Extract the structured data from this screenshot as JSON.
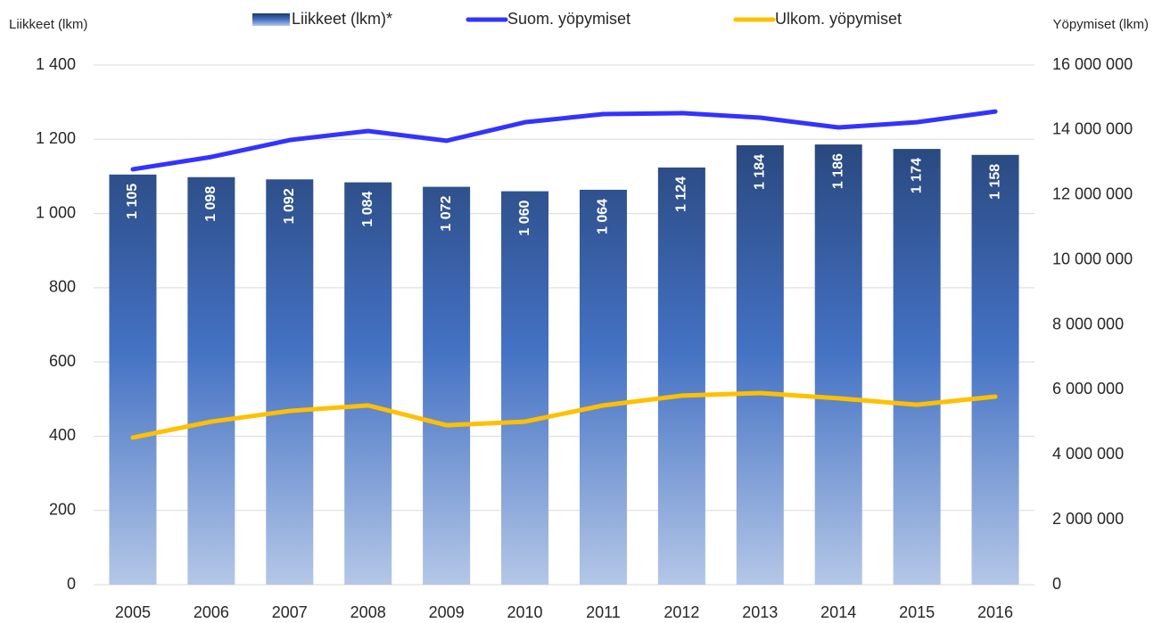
{
  "chart_data": {
    "type": "bar",
    "categories": [
      "2005",
      "2006",
      "2007",
      "2008",
      "2009",
      "2010",
      "2011",
      "2012",
      "2013",
      "2014",
      "2015",
      "2016"
    ],
    "y_label": "Liikkeet (lkm)",
    "y2_label": "Yöpymiset (lkm)",
    "series": [
      {
        "name": "Liikkeet (lkm)*",
        "type": "bar",
        "color": "#4472c4",
        "values": [
          1105,
          1098,
          1092,
          1084,
          1072,
          1060,
          1064,
          1124,
          1184,
          1186,
          1174,
          1158
        ],
        "value_labels": [
          "1 105",
          "1 098",
          "1 092",
          "1 084",
          "1 072",
          "1 060",
          "1 064",
          "1 124",
          "1 184",
          "1 186",
          "1 174",
          "1 158"
        ]
      },
      {
        "name": "Suom. yöpymiset",
        "type": "line",
        "axis": "y2",
        "color": "#3333ff",
        "values": [
          12790000,
          13170000,
          13690000,
          13970000,
          13670000,
          14240000,
          14490000,
          14520000,
          14380000,
          14080000,
          14240000,
          14570000
        ]
      },
      {
        "name": "Ulkom. yöpymiset",
        "type": "line",
        "axis": "y2",
        "color": "#ffc000",
        "values": [
          4530000,
          5020000,
          5350000,
          5520000,
          4910000,
          5020000,
          5520000,
          5820000,
          5900000,
          5740000,
          5540000,
          5790000
        ]
      }
    ],
    "ylim": [
      0,
      1400
    ],
    "yticks": [
      0,
      200,
      400,
      600,
      800,
      {
        "value": 1000,
        "label": "1 000"
      },
      {
        "value": 1200,
        "label": "1 200"
      },
      {
        "value": 1400,
        "label": "1 400"
      }
    ],
    "y2lim": [
      0,
      16000000
    ],
    "y2ticks": [
      0,
      {
        "value": 2000000,
        "label": "2 000 000"
      },
      {
        "value": 4000000,
        "label": "4 000 000"
      },
      {
        "value": 6000000,
        "label": "6 000 000"
      },
      {
        "value": 8000000,
        "label": "8 000 000"
      },
      {
        "value": 10000000,
        "label": "10 000 000"
      },
      {
        "value": 12000000,
        "label": "12 000 000"
      },
      {
        "value": 14000000,
        "label": "14 000 000"
      },
      {
        "value": 16000000,
        "label": "16 000 000"
      }
    ],
    "grid": true
  }
}
